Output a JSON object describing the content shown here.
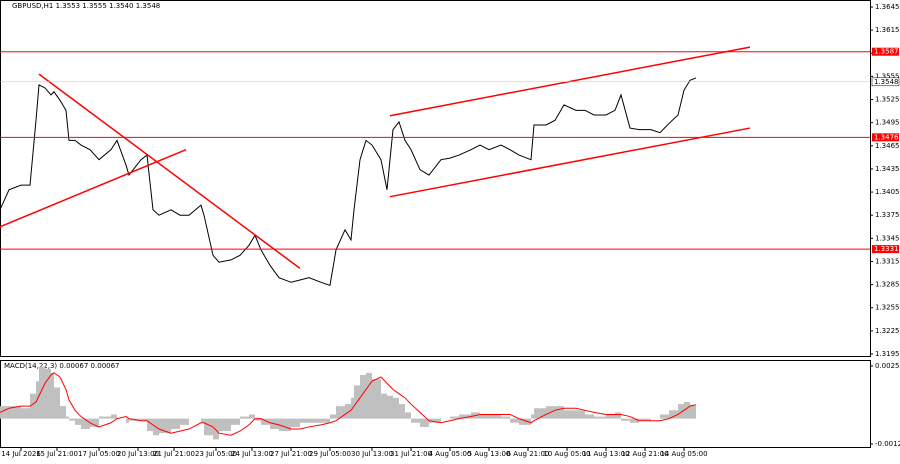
{
  "chart_data": [
    {
      "type": "line",
      "title": "GBPUSD,H1  1.3553 1.3555 1.3540 1.3548",
      "x": [
        0,
        3,
        7,
        10,
        12,
        13,
        15,
        17,
        18,
        20,
        22,
        23,
        25,
        27,
        30,
        33,
        37,
        39,
        42,
        43,
        47,
        49,
        51,
        53,
        57,
        60,
        63,
        67,
        68,
        71,
        73,
        77,
        80,
        83,
        85,
        87,
        90,
        93,
        97,
        100,
        103,
        107,
        110,
        112,
        115,
        117,
        118,
        120,
        122,
        124,
        127,
        129,
        131,
        133,
        135,
        137,
        140,
        143,
        147,
        150,
        153,
        157,
        160,
        163,
        167,
        170,
        173,
        177,
        178,
        182,
        185,
        188,
        192,
        195,
        198,
        202,
        205,
        207,
        210,
        213,
        217,
        220,
        223,
        226,
        228,
        230,
        232
      ],
      "series": [
        {
          "name": "GBPUSD",
          "color": "#000000",
          "values": [
            1.3382,
            1.3408,
            1.3414,
            1.3414,
            1.3498,
            1.3544,
            1.354,
            1.3531,
            1.3535,
            1.3524,
            1.3511,
            1.3472,
            1.3472,
            1.3466,
            1.346,
            1.3447,
            1.346,
            1.3472,
            1.344,
            1.3427,
            1.3447,
            1.3453,
            1.3382,
            1.3375,
            1.3382,
            1.3375,
            1.3375,
            1.3388,
            1.3375,
            1.3323,
            1.3314,
            1.3317,
            1.3323,
            1.3336,
            1.3349,
            1.333,
            1.331,
            1.3294,
            1.3288,
            1.3291,
            1.3294,
            1.3288,
            1.3284,
            1.333,
            1.3356,
            1.3343,
            1.3382,
            1.3447,
            1.3472,
            1.3466,
            1.3447,
            1.3408,
            1.3486,
            1.3496,
            1.3472,
            1.346,
            1.3434,
            1.3427,
            1.3447,
            1.3449,
            1.3453,
            1.346,
            1.3466,
            1.346,
            1.3466,
            1.346,
            1.3453,
            1.3447,
            1.3492,
            1.3492,
            1.3498,
            1.3518,
            1.3511,
            1.3511,
            1.3505,
            1.3505,
            1.3511,
            1.3531,
            1.3488,
            1.3486,
            1.3486,
            1.3482,
            1.3494,
            1.3505,
            1.3537,
            1.355,
            1.3553
          ]
        }
      ],
      "xlim": [
        0,
        290
      ],
      "xticks": [
        {
          "value": 7,
          "label": "14 Jul 2026"
        },
        {
          "value": 19,
          "label": "15 Jul 21:00"
        },
        {
          "value": 33,
          "label": "17 Jul 05:00"
        },
        {
          "value": 46,
          "label": "20 Jul 13:00"
        },
        {
          "value": 58,
          "label": "21 Jul 21:00"
        },
        {
          "value": 72,
          "label": "23 Jul 05:00"
        },
        {
          "value": 84,
          "label": "24 Jul 13:00"
        },
        {
          "value": 97,
          "label": "27 Jul 21:00"
        },
        {
          "value": 110,
          "label": "29 Jul 05:00"
        },
        {
          "value": 124,
          "label": "30 Jul 13:00"
        },
        {
          "value": 137,
          "label": "31 Jul 21:00"
        },
        {
          "value": 150,
          "label": "4 Aug 05:00"
        },
        {
          "value": 163,
          "label": "5 Aug 13:00"
        },
        {
          "value": 176,
          "label": "6 Aug 21:00"
        },
        {
          "value": 189,
          "label": "10 Aug 05:00"
        },
        {
          "value": 202,
          "label": "11 Aug 13:00"
        },
        {
          "value": 215,
          "label": "12 Aug 21:00"
        },
        {
          "value": 228,
          "label": "14 Aug 05:00"
        }
      ],
      "ylim": [
        1.3195,
        1.3645
      ],
      "yticks": [
        1.3645,
        1.3615,
        1.3585,
        1.3555,
        1.3525,
        1.3495,
        1.3465,
        1.3435,
        1.3405,
        1.3375,
        1.3345,
        1.3315,
        1.3285,
        1.3255,
        1.3225,
        1.3195
      ],
      "levels": [
        1.3587,
        1.3476,
        1.3331
      ],
      "level_color": "#ff0000",
      "current_price": 1.3548,
      "trend_lines": [
        {
          "x": [
            0,
            62
          ],
          "values": [
            1.336,
            1.346
          ]
        },
        {
          "x": [
            13,
            100
          ],
          "values": [
            1.3558,
            1.3306
          ]
        },
        {
          "x": [
            130,
            250
          ],
          "values": [
            1.3504,
            1.3593
          ]
        },
        {
          "x": [
            130,
            250
          ],
          "values": [
            1.3399,
            1.3488
          ]
        }
      ]
    },
    {
      "type": "bar",
      "title": "MACD(14,22,3) 0.00067 0.00067",
      "series": [
        {
          "name": "MACD",
          "color": "#c0c0c0",
          "values": [
            0.0004,
            0.0006,
            0.0006,
            0.0005,
            0.0012,
            0.0018,
            0.0025,
            0.0024,
            0.0022,
            0.0015,
            0.0006,
            0.0001,
            -0.0001,
            -0.0003,
            -0.0005,
            -0.0004,
            0.0001,
            0.0002,
            0.0,
            -0.0002,
            -0.0001,
            -0.0001,
            -0.0006,
            -0.0008,
            -0.0007,
            -0.0005,
            -0.0003,
            0.0,
            -0.0002,
            -0.0008,
            -0.001,
            -0.0006,
            -0.0003,
            0.0001,
            0.0002,
            -0.0001,
            -0.0003,
            -0.0005,
            -0.0006,
            -0.0004,
            -0.0002,
            -0.0002,
            -0.0002,
            0.0002,
            0.0006,
            0.0007,
            0.001,
            0.0016,
            0.0021,
            0.0022,
            0.0019,
            0.0012,
            0.0011,
            0.001,
            0.0007,
            0.0003,
            -0.0002,
            -0.0004,
            -0.0002,
            0.0,
            0.0001,
            0.0002,
            0.0003,
            0.0002,
            0.0002,
            0.0001,
            -0.0002,
            -0.0003,
            0.0002,
            0.0005,
            0.0006,
            0.0006,
            0.0004,
            0.0004,
            0.0002,
            0.0001,
            0.0002,
            0.0003,
            -0.0001,
            -0.0002,
            -0.0001,
            0.0,
            0.0002,
            0.0004,
            0.0007,
            0.0008,
            0.00067
          ]
        },
        {
          "name": "Signal",
          "color": "#ff0000",
          "values": [
            0.0003,
            0.0005,
            0.0006,
            0.0006,
            0.0008,
            0.0011,
            0.0017,
            0.0021,
            0.0022,
            0.002,
            0.0014,
            0.0009,
            0.0004,
            0.0001,
            -0.0002,
            -0.0004,
            -0.0002,
            0.0,
            0.0001,
            0.0,
            -0.0001,
            -0.0001,
            -0.0003,
            -0.0005,
            -0.0007,
            -0.0006,
            -0.0005,
            -0.0002,
            -0.0002,
            -0.0004,
            -0.0007,
            -0.0008,
            -0.0006,
            -0.0003,
            0.0,
            0.0,
            -0.0002,
            -0.0003,
            -0.0005,
            -0.0005,
            -0.0004,
            -0.0003,
            -0.0002,
            -0.0001,
            0.0002,
            0.0004,
            0.0006,
            0.001,
            0.0014,
            0.0018,
            0.002,
            0.0017,
            0.0014,
            0.0012,
            0.001,
            0.0007,
            0.0003,
            -0.0001,
            -0.0002,
            -0.0001,
            0.0,
            0.0001,
            0.0002,
            0.0002,
            0.0002,
            0.0002,
            0.0,
            -0.0002,
            -0.0001,
            0.0002,
            0.0004,
            0.0005,
            0.0005,
            0.0004,
            0.0003,
            0.0002,
            0.0002,
            0.0002,
            0.0001,
            -0.0001,
            -0.0001,
            -0.0001,
            0.0,
            0.0002,
            0.0004,
            0.0006,
            0.00067
          ]
        }
      ],
      "ylim": [
        -0.00122,
        0.00253
      ],
      "yticks": [
        0.00253,
        -0.00122
      ]
    }
  ]
}
